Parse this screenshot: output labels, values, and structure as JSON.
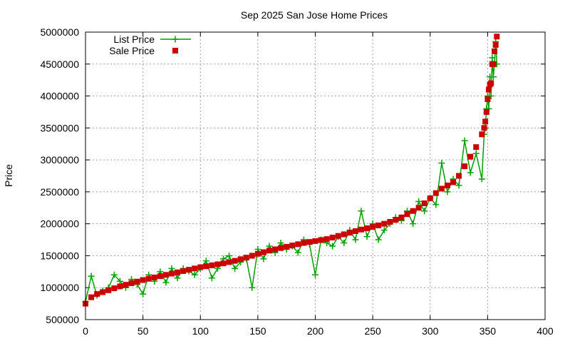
{
  "chart_data": {
    "type": "line",
    "title": "Sep 2025 San Jose Home Prices",
    "xlabel": "",
    "ylabel": "Price",
    "xlim": [
      0,
      400
    ],
    "ylim": [
      500000,
      5000000
    ],
    "x_ticks": [
      0,
      50,
      100,
      150,
      200,
      250,
      300,
      350,
      400
    ],
    "y_ticks": [
      500000,
      1000000,
      1500000,
      2000000,
      2500000,
      3000000,
      3500000,
      4000000,
      4500000,
      5000000
    ],
    "grid": true,
    "legend_placement": "top-left",
    "x": [
      0,
      5,
      10,
      15,
      20,
      25,
      30,
      35,
      40,
      45,
      50,
      55,
      60,
      65,
      70,
      75,
      80,
      85,
      90,
      95,
      100,
      105,
      110,
      115,
      120,
      125,
      130,
      135,
      140,
      145,
      150,
      155,
      160,
      165,
      170,
      175,
      180,
      185,
      190,
      195,
      200,
      205,
      210,
      215,
      220,
      225,
      230,
      235,
      240,
      245,
      250,
      255,
      260,
      265,
      270,
      275,
      280,
      285,
      290,
      295,
      300,
      305,
      310,
      315,
      320,
      325,
      330,
      335,
      340,
      345,
      347,
      348,
      349,
      350,
      351,
      352,
      353,
      354,
      355,
      356,
      357,
      358
    ],
    "series": [
      {
        "name": "List Price",
        "style": "linespoints",
        "color": "#00a000",
        "marker": "plus",
        "values": [
          780000,
          1180000,
          880000,
          950000,
          1000000,
          1200000,
          1100000,
          1000000,
          1130000,
          1050000,
          900000,
          1200000,
          1100000,
          1250000,
          1080000,
          1300000,
          1150000,
          1300000,
          1260000,
          1200000,
          1300000,
          1420000,
          1150000,
          1300000,
          1450000,
          1500000,
          1300000,
          1400000,
          1450000,
          1000000,
          1600000,
          1450000,
          1650000,
          1550000,
          1700000,
          1600000,
          1650000,
          1550000,
          1750000,
          1680000,
          1200000,
          1750000,
          1700000,
          1650000,
          1800000,
          1700000,
          1900000,
          1750000,
          2200000,
          1800000,
          2000000,
          1750000,
          1900000,
          2000000,
          2100000,
          2050000,
          2200000,
          2000000,
          2350000,
          2200000,
          2400000,
          2300000,
          2950000,
          2500000,
          2700000,
          2600000,
          3300000,
          2800000,
          3100000,
          2700000,
          3400000,
          3500000,
          3800000,
          4000000,
          3800000,
          4300000,
          4000000,
          4600000,
          4300000,
          4500000,
          4850000,
          4500000
        ]
      },
      {
        "name": "Sale Price",
        "style": "points",
        "color": "#cc0000",
        "marker": "square",
        "values": [
          750000,
          850000,
          900000,
          930000,
          960000,
          990000,
          1020000,
          1045000,
          1070000,
          1095000,
          1120000,
          1140000,
          1160000,
          1180000,
          1200000,
          1220000,
          1240000,
          1260000,
          1280000,
          1300000,
          1320000,
          1335000,
          1350000,
          1365000,
          1380000,
          1400000,
          1420000,
          1445000,
          1470000,
          1500000,
          1530000,
          1555000,
          1580000,
          1600000,
          1620000,
          1640000,
          1660000,
          1680000,
          1700000,
          1715000,
          1730000,
          1745000,
          1760000,
          1785000,
          1810000,
          1835000,
          1860000,
          1885000,
          1910000,
          1930000,
          1950000,
          1975000,
          2000000,
          2030000,
          2060000,
          2100000,
          2150000,
          2200000,
          2250000,
          2320000,
          2400000,
          2480000,
          2550000,
          2600000,
          2650000,
          2750000,
          2900000,
          3050000,
          3200000,
          3400000,
          3500000,
          3600000,
          3750000,
          3950000,
          4100000,
          4180000,
          4200000,
          4500000,
          4500000,
          4700000,
          4800000,
          4930000
        ]
      }
    ]
  }
}
